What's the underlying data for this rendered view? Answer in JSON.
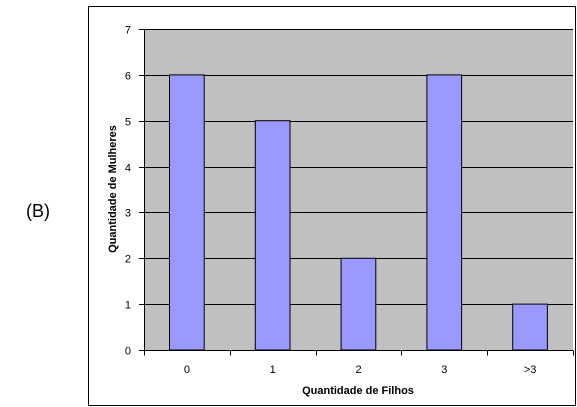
{
  "panel_label": "(B)",
  "colors": {
    "plot_background": "#c0c0c0",
    "bar_fill": "#9999ff",
    "bar_stroke": "#000000",
    "gridline": "#000000",
    "frame": "#000000"
  },
  "chart_data": {
    "type": "bar",
    "categories": [
      "0",
      "1",
      "2",
      "3",
      ">3"
    ],
    "values": [
      6,
      5,
      2,
      6,
      1
    ],
    "title": "",
    "xlabel": "Quantidade de Filhos",
    "ylabel": "Quantidade de Mulheres",
    "ylim": [
      0,
      7
    ],
    "yticks": [
      0,
      1,
      2,
      3,
      4,
      5,
      6,
      7
    ],
    "grid": true,
    "legend": "none"
  }
}
